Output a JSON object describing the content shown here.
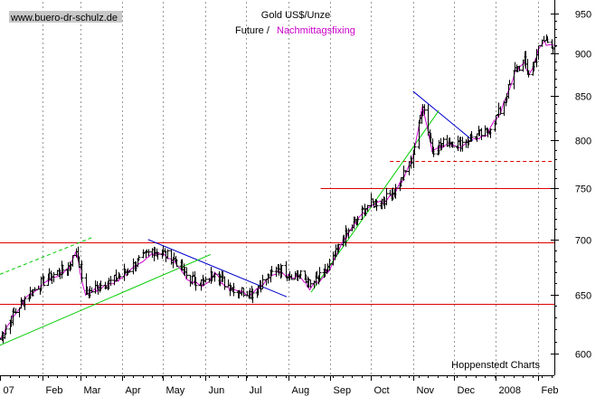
{
  "chart_data": {
    "type": "ohlc",
    "watermark": "www.buero-dr-schulz.de",
    "title": "Gold US$/Unze",
    "subtitle_prefix": "Future /",
    "subtitle_highlight": "Nachmittagsfixing",
    "source": "Hoppenstedt Charts",
    "colors": {
      "bars": "#000000",
      "fixing": "#cc00cc",
      "support_lines": "#dd0000",
      "down_trendlines": "#0000cc",
      "up_trendlines": "#00cc00",
      "grid": "#999999"
    },
    "y_scale": "log",
    "ylim": [
      585,
      960
    ],
    "yticks": [
      600,
      650,
      700,
      750,
      800,
      850,
      900,
      950
    ],
    "x_tick_labels": [
      "07",
      "Feb",
      "Mar",
      "Apr",
      "May",
      "Jun",
      "Jul",
      "Aug",
      "Sep",
      "Oct",
      "Nov",
      "Dec",
      "2008",
      "Feb"
    ],
    "x_tick_dates": [
      "2007-01-01",
      "2007-02-01",
      "2007-03-01",
      "2007-04-01",
      "2007-05-01",
      "2007-06-01",
      "2007-07-01",
      "2007-08-01",
      "2007-09-01",
      "2007-10-01",
      "2007-11-01",
      "2007-12-01",
      "2008-01-01",
      "2008-02-01"
    ],
    "xlim": [
      "2007-01-01",
      "2008-02-13"
    ],
    "grid": "vertical dashed",
    "legend": "none",
    "price_path": [
      [
        "2007-01-01",
        612
      ],
      [
        "2007-01-10",
        632
      ],
      [
        "2007-01-20",
        648
      ],
      [
        "2007-01-31",
        660
      ],
      [
        "2007-02-10",
        668
      ],
      [
        "2007-02-20",
        675
      ],
      [
        "2007-02-26",
        690
      ],
      [
        "2007-03-05",
        650
      ],
      [
        "2007-03-15",
        658
      ],
      [
        "2007-03-25",
        662
      ],
      [
        "2007-04-05",
        672
      ],
      [
        "2007-04-15",
        682
      ],
      [
        "2007-04-23",
        690
      ],
      [
        "2007-04-30",
        688
      ],
      [
        "2007-05-10",
        681
      ],
      [
        "2007-05-20",
        664
      ],
      [
        "2007-06-01",
        660
      ],
      [
        "2007-06-08",
        672
      ],
      [
        "2007-06-15",
        660
      ],
      [
        "2007-06-25",
        654
      ],
      [
        "2007-07-05",
        651
      ],
      [
        "2007-07-15",
        663
      ],
      [
        "2007-07-25",
        674
      ],
      [
        "2007-08-01",
        668
      ],
      [
        "2007-08-10",
        667
      ],
      [
        "2007-08-17",
        658
      ],
      [
        "2007-08-25",
        666
      ],
      [
        "2007-09-01",
        676
      ],
      [
        "2007-09-10",
        700
      ],
      [
        "2007-09-20",
        718
      ],
      [
        "2007-09-28",
        733
      ],
      [
        "2007-10-05",
        736
      ],
      [
        "2007-10-12",
        740
      ],
      [
        "2007-10-20",
        750
      ],
      [
        "2007-10-31",
        780
      ],
      [
        "2007-11-05",
        815
      ],
      [
        "2007-11-08",
        841
      ],
      [
        "2007-11-15",
        790
      ],
      [
        "2007-11-20",
        795
      ],
      [
        "2007-11-28",
        800
      ],
      [
        "2007-12-05",
        796
      ],
      [
        "2007-12-15",
        805
      ],
      [
        "2007-12-25",
        808
      ],
      [
        "2008-01-05",
        835
      ],
      [
        "2008-01-15",
        880
      ],
      [
        "2008-01-22",
        890
      ],
      [
        "2008-01-26",
        872
      ],
      [
        "2008-02-01",
        905
      ],
      [
        "2008-02-05",
        915
      ],
      [
        "2008-02-10",
        915
      ],
      [
        "2008-02-12",
        910
      ]
    ],
    "support_lines": [
      {
        "price": 642,
        "from": "2007-01-01",
        "to": "2008-02-13",
        "style": "solid"
      },
      {
        "price": 697,
        "from": "2007-01-01",
        "to": "2008-02-13",
        "style": "solid"
      },
      {
        "price": 750,
        "from": "2007-08-25",
        "to": "2008-02-13",
        "style": "solid"
      },
      {
        "price": 778,
        "from": "2007-10-15",
        "to": "2008-02-13",
        "style": "dashed"
      }
    ],
    "trend_lines": [
      {
        "kind": "down",
        "from": [
          "2007-04-20",
          700
        ],
        "to": [
          "2007-07-31",
          648
        ],
        "style": "solid"
      },
      {
        "kind": "down",
        "from": [
          "2007-11-01",
          855
        ],
        "to": [
          "2007-12-15",
          800
        ],
        "style": "solid"
      },
      {
        "kind": "up",
        "from": [
          "2007-01-01",
          607
        ],
        "to": [
          "2007-06-05",
          686
        ],
        "style": "solid"
      },
      {
        "kind": "up",
        "from": [
          "2007-08-18",
          652
        ],
        "to": [
          "2007-11-20",
          833
        ],
        "style": "solid"
      },
      {
        "kind": "up",
        "from": [
          "2007-01-01",
          668
        ],
        "to": [
          "2007-03-10",
          702
        ],
        "style": "dashed"
      }
    ]
  }
}
